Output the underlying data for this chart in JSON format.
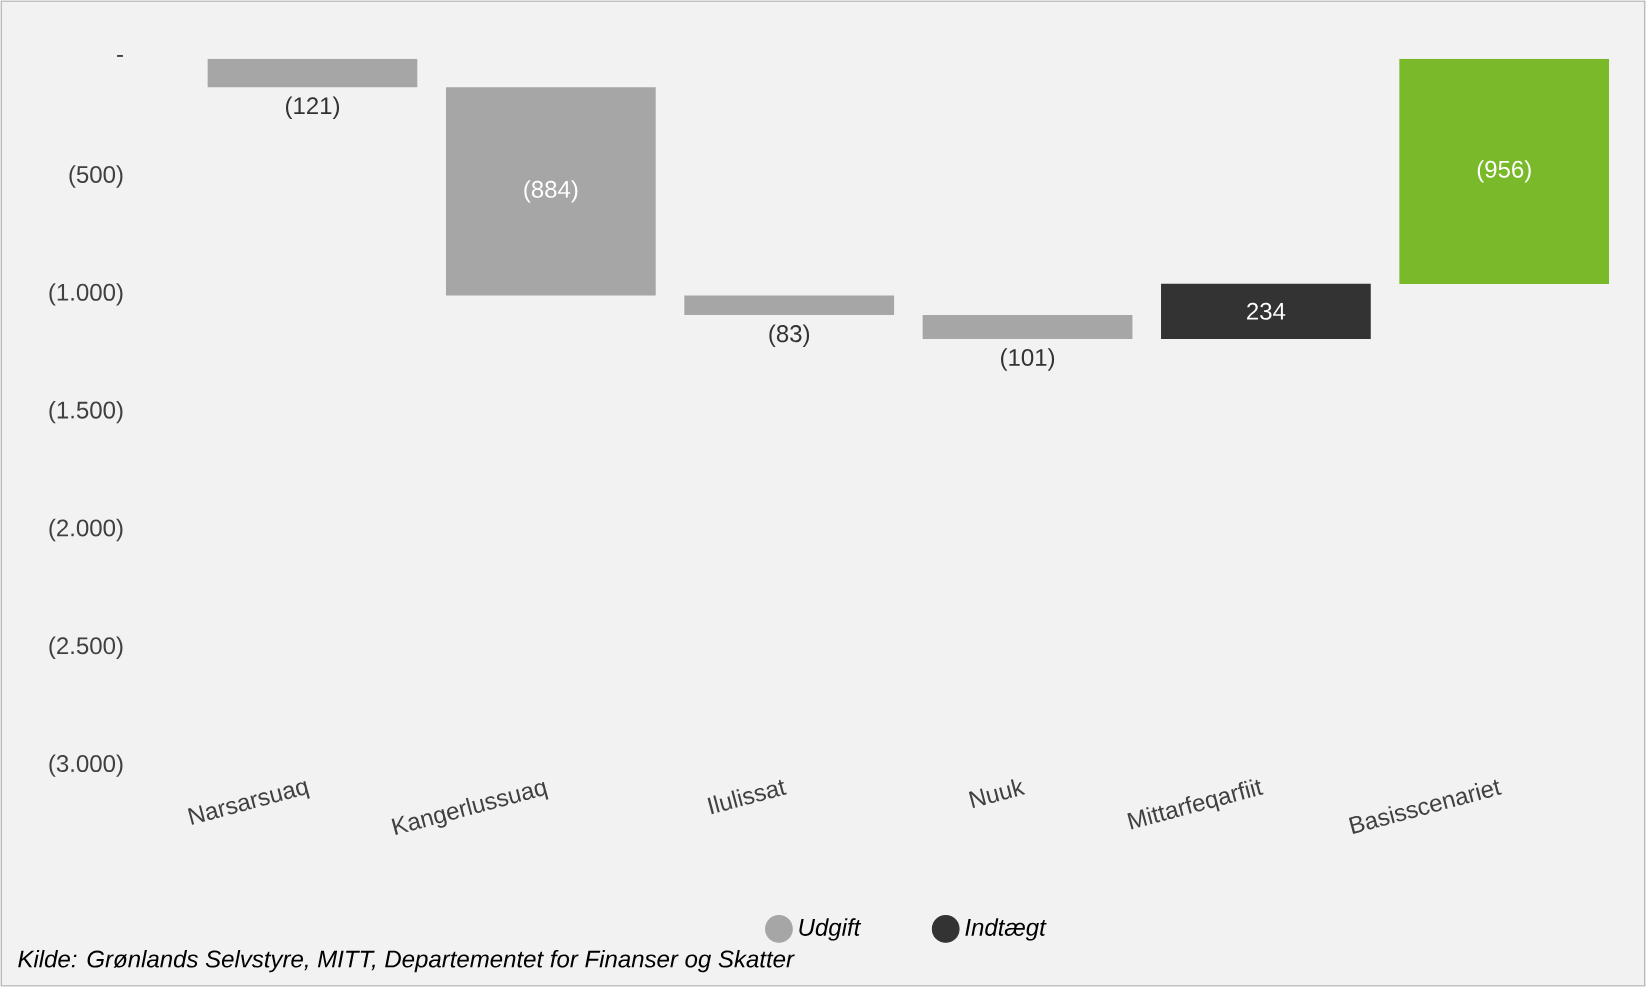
{
  "chart_data": {
    "type": "bar",
    "categories": [
      "Narsarsuaq",
      "Kangerlussuaq",
      "Ilulissat",
      "Nuuk",
      "Mittarfeqarfiit",
      "Basisscenariet"
    ],
    "series": [
      {
        "name": "Udgift",
        "color": "#a6a6a6",
        "base": [
          0,
          -121,
          -1005,
          -1088,
          null,
          null
        ],
        "values": [
          -121,
          -884,
          -83,
          -101,
          null,
          null
        ],
        "value_labels": [
          "(121)",
          "(884)",
          "(83)",
          "(101)",
          null,
          null
        ]
      },
      {
        "name": "Indtægt",
        "color": "#333333",
        "base": [
          null,
          null,
          null,
          null,
          -1189,
          null
        ],
        "values": [
          null,
          null,
          null,
          null,
          234,
          null
        ],
        "value_labels": [
          null,
          null,
          null,
          null,
          "234",
          null
        ]
      },
      {
        "color": "#7ab929",
        "base": [
          null,
          null,
          null,
          null,
          null,
          0
        ],
        "values": [
          null,
          null,
          null,
          null,
          null,
          -956
        ],
        "value_labels": [
          null,
          null,
          null,
          null,
          null,
          "(956)"
        ]
      }
    ],
    "ylim": [
      -3000,
      0
    ],
    "yticks": [
      {
        "value": 0,
        "label": "-"
      },
      {
        "value": -500,
        "label": "(500)"
      },
      {
        "value": -1000,
        "label": "(1.000)"
      },
      {
        "value": -1500,
        "label": "(1.500)"
      },
      {
        "value": -2000,
        "label": "(2.000)"
      },
      {
        "value": -2500,
        "label": "(2.500)"
      },
      {
        "value": -3000,
        "label": "(3.000)"
      }
    ],
    "grid": false,
    "legend": "bottom",
    "annotations": [
      "Kilde: Grønlands Selvstyre, MITT, Departementet for Finanser og Skatter"
    ]
  }
}
